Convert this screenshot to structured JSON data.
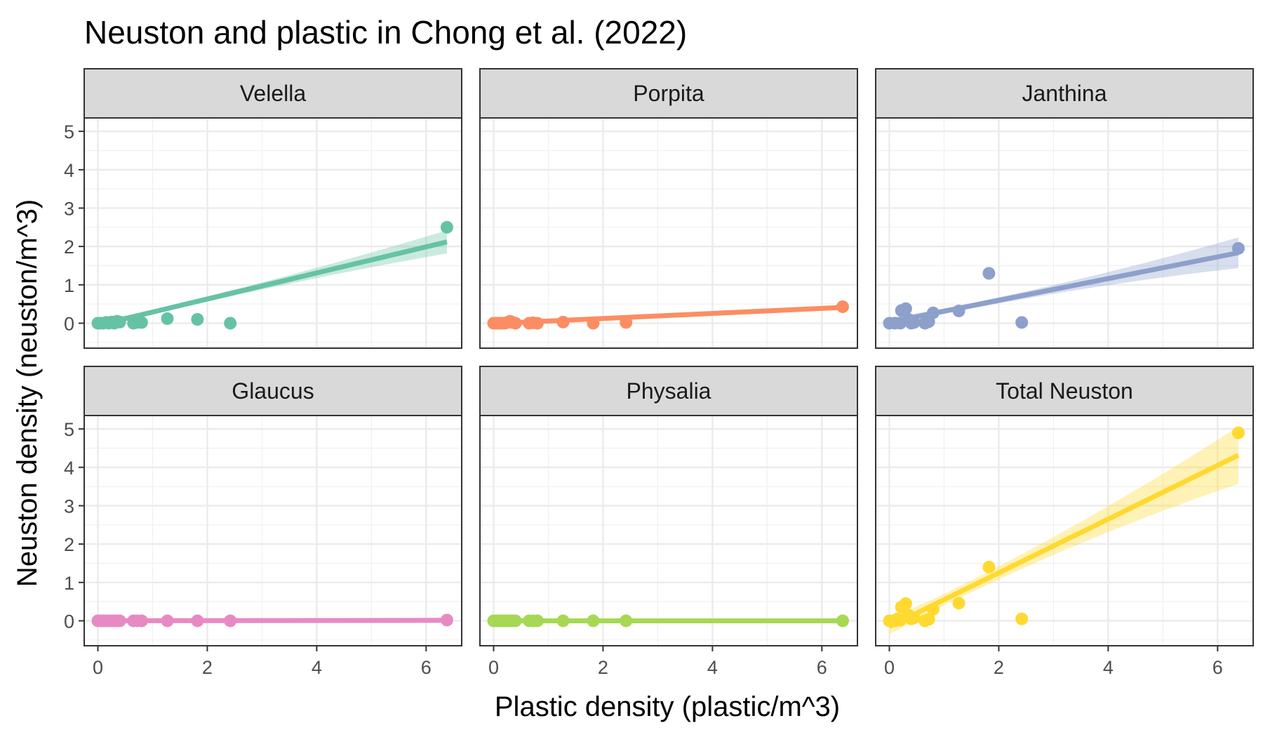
{
  "chart_data": {
    "type": "scatter",
    "title": "Neuston and plastic in Chong et al. (2022)",
    "xlabel": "Plastic density (plastic/m^3)",
    "ylabel": "Neuston density (neuston/m^3)",
    "xlim": [
      -0.25,
      6.65
    ],
    "ylim": [
      -0.65,
      5.35
    ],
    "x_ticks": [
      0,
      2,
      4,
      6
    ],
    "y_ticks": [
      0,
      1,
      2,
      3,
      4,
      5
    ],
    "grid": true,
    "facets": [
      {
        "name": "Velella",
        "color": "#66C2A5",
        "points": [
          [
            0,
            0
          ],
          [
            0.05,
            0
          ],
          [
            0.1,
            0
          ],
          [
            0.15,
            0.02
          ],
          [
            0.2,
            0
          ],
          [
            0.25,
            0.03
          ],
          [
            0.3,
            0
          ],
          [
            0.35,
            0.05
          ],
          [
            0.4,
            0.03
          ],
          [
            0.65,
            0
          ],
          [
            0.72,
            0.02
          ],
          [
            0.8,
            0.02
          ],
          [
            1.27,
            0.12
          ],
          [
            1.82,
            0.1
          ],
          [
            2.42,
            0
          ],
          [
            6.38,
            2.5
          ]
        ],
        "fit": {
          "slope": 0.34,
          "intercept": -0.05,
          "se_at_min": 0.09,
          "se_at_mean": 0.06,
          "se_at_max": 0.3
        }
      },
      {
        "name": "Porpita",
        "color": "#FC8D62",
        "points": [
          [
            0,
            0
          ],
          [
            0.05,
            0
          ],
          [
            0.1,
            0
          ],
          [
            0.15,
            0
          ],
          [
            0.2,
            0
          ],
          [
            0.25,
            0.02
          ],
          [
            0.3,
            0.05
          ],
          [
            0.35,
            0.02
          ],
          [
            0.4,
            0
          ],
          [
            0.65,
            0
          ],
          [
            0.72,
            0.01
          ],
          [
            0.8,
            0
          ],
          [
            1.27,
            0.03
          ],
          [
            1.82,
            0
          ],
          [
            2.42,
            0.02
          ],
          [
            6.38,
            0.43
          ]
        ],
        "fit": {
          "slope": 0.066,
          "intercept": -0.01,
          "se_at_min": 0.04,
          "se_at_mean": 0.02,
          "se_at_max": 0.07
        }
      },
      {
        "name": "Janthina",
        "color": "#8DA0CB",
        "points": [
          [
            0,
            0
          ],
          [
            0.1,
            0
          ],
          [
            0.2,
            0
          ],
          [
            0.22,
            0.33
          ],
          [
            0.3,
            0.38
          ],
          [
            0.35,
            0.1
          ],
          [
            0.4,
            0
          ],
          [
            0.45,
            0.02
          ],
          [
            0.65,
            0
          ],
          [
            0.72,
            0.04
          ],
          [
            0.8,
            0.27
          ],
          [
            1.27,
            0.32
          ],
          [
            1.82,
            1.3
          ],
          [
            2.42,
            0.02
          ],
          [
            6.38,
            1.95
          ]
        ],
        "fit": {
          "slope": 0.283,
          "intercept": 0.03,
          "se_at_min": 0.1,
          "se_at_mean": 0.07,
          "se_at_max": 0.4
        }
      },
      {
        "name": "Glaucus",
        "color": "#E78AC3",
        "points": [
          [
            0,
            0
          ],
          [
            0.05,
            0
          ],
          [
            0.1,
            0
          ],
          [
            0.15,
            0
          ],
          [
            0.2,
            0
          ],
          [
            0.25,
            0
          ],
          [
            0.3,
            0
          ],
          [
            0.35,
            0
          ],
          [
            0.4,
            0
          ],
          [
            0.65,
            0
          ],
          [
            0.72,
            0
          ],
          [
            0.8,
            0
          ],
          [
            1.27,
            0
          ],
          [
            1.82,
            0
          ],
          [
            2.42,
            0
          ],
          [
            6.38,
            0.02
          ]
        ],
        "fit": {
          "slope": 0.002,
          "intercept": 0.0,
          "se_at_min": 0.01,
          "se_at_mean": 0.01,
          "se_at_max": 0.02
        }
      },
      {
        "name": "Physalia",
        "color": "#A6D854",
        "points": [
          [
            0,
            0
          ],
          [
            0.05,
            0
          ],
          [
            0.1,
            0
          ],
          [
            0.15,
            0
          ],
          [
            0.2,
            0
          ],
          [
            0.25,
            0
          ],
          [
            0.3,
            0
          ],
          [
            0.35,
            0
          ],
          [
            0.4,
            0
          ],
          [
            0.65,
            0
          ],
          [
            0.72,
            0
          ],
          [
            0.8,
            0
          ],
          [
            1.27,
            0
          ],
          [
            1.82,
            0
          ],
          [
            2.42,
            0
          ],
          [
            6.38,
            0
          ]
        ],
        "fit": {
          "slope": 0.0,
          "intercept": 0.0,
          "se_at_min": 0.0,
          "se_at_mean": 0.0,
          "se_at_max": 0.0
        }
      },
      {
        "name": "Total Neuston",
        "color": "#FFD92F",
        "points": [
          [
            0,
            0
          ],
          [
            0.05,
            0
          ],
          [
            0.1,
            0
          ],
          [
            0.15,
            0.05
          ],
          [
            0.2,
            0.02
          ],
          [
            0.22,
            0.36
          ],
          [
            0.3,
            0.45
          ],
          [
            0.35,
            0.15
          ],
          [
            0.4,
            0.05
          ],
          [
            0.45,
            0.08
          ],
          [
            0.65,
            0
          ],
          [
            0.72,
            0.04
          ],
          [
            0.8,
            0.3
          ],
          [
            1.27,
            0.46
          ],
          [
            1.82,
            1.4
          ],
          [
            2.42,
            0.05
          ],
          [
            6.38,
            4.9
          ]
        ],
        "fit": {
          "slope": 0.7,
          "intercept": -0.15,
          "se_at_min": 0.2,
          "se_at_mean": 0.15,
          "se_at_max": 0.75
        }
      }
    ]
  }
}
